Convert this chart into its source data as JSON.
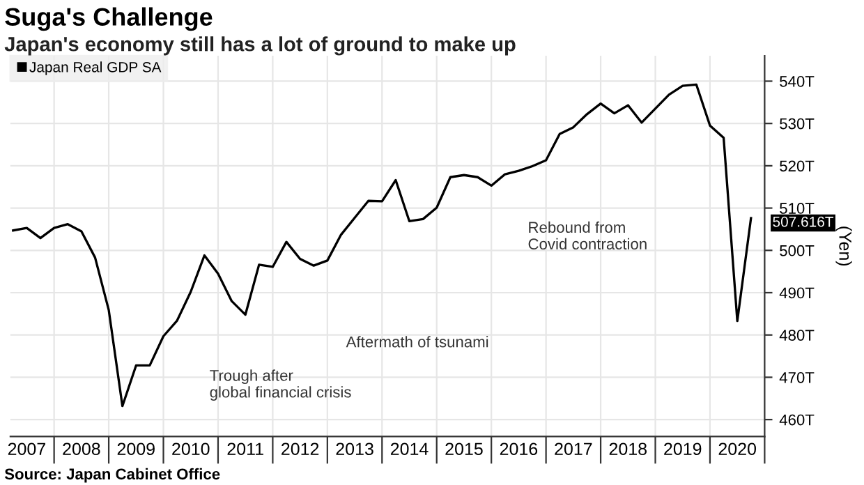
{
  "chart_data": {
    "type": "line",
    "title": "Suga's Challenge",
    "subtitle": "Japan's economy still has a lot of ground to make up",
    "ylabel": "(Yen)",
    "x": [
      2007.25,
      2007.5,
      2007.75,
      2008.0,
      2008.25,
      2008.5,
      2008.75,
      2009.0,
      2009.25,
      2009.5,
      2009.75,
      2010.0,
      2010.25,
      2010.5,
      2010.75,
      2011.0,
      2011.25,
      2011.5,
      2011.75,
      2012.0,
      2012.25,
      2012.5,
      2012.75,
      2013.0,
      2013.25,
      2013.5,
      2013.75,
      2014.0,
      2014.25,
      2014.5,
      2014.75,
      2015.0,
      2015.25,
      2015.5,
      2015.75,
      2016.0,
      2016.25,
      2016.5,
      2016.75,
      2017.0,
      2017.25,
      2017.5,
      2017.75,
      2018.0,
      2018.25,
      2018.5,
      2018.75,
      2019.0,
      2019.25,
      2019.5,
      2019.75,
      2020.0,
      2020.25,
      2020.5,
      2020.75
    ],
    "series": [
      {
        "name": "Japan Real GDP SA",
        "color": "#000000",
        "values": [
          504.7,
          505.3,
          502.9,
          505.3,
          506.2,
          504.5,
          498.3,
          485.9,
          463.2,
          472.8,
          472.8,
          479.7,
          483.4,
          490.2,
          498.8,
          494.5,
          488.0,
          484.8,
          496.6,
          496.1,
          502.0,
          498.0,
          496.4,
          497.6,
          503.7,
          507.7,
          511.7,
          511.6,
          516.6,
          506.9,
          507.4,
          510.1,
          517.3,
          517.8,
          517.3,
          515.3,
          518.0,
          518.8,
          519.9,
          521.3,
          527.5,
          529.1,
          532.2,
          534.7,
          532.4,
          534.3,
          530.2,
          533.5,
          536.8,
          538.9,
          539.2,
          529.5,
          526.6,
          483.3,
          507.616
        ],
        "value_labels": [
          null,
          null,
          null,
          null,
          null,
          null,
          null,
          null,
          null,
          null,
          null,
          null,
          null,
          null,
          null,
          null,
          null,
          null,
          null,
          null,
          null,
          null,
          null,
          null,
          null,
          null,
          null,
          null,
          null,
          null,
          null,
          null,
          null,
          null,
          null,
          null,
          null,
          null,
          null,
          null,
          null,
          null,
          null,
          null,
          null,
          null,
          null,
          null,
          null,
          null,
          null,
          null,
          null,
          null,
          "507.616T"
        ]
      }
    ],
    "xlim": [
      2007.2,
      2021.0
    ],
    "xticks": [
      {
        "value": 2007.5,
        "label": "2007"
      },
      {
        "value": 2008.0,
        "label": null
      },
      {
        "value": 2008.5,
        "label": "2008"
      },
      {
        "value": 2009.0,
        "label": null
      },
      {
        "value": 2009.5,
        "label": "2009"
      },
      {
        "value": 2010.0,
        "label": null
      },
      {
        "value": 2010.5,
        "label": "2010"
      },
      {
        "value": 2011.0,
        "label": null
      },
      {
        "value": 2011.5,
        "label": "2011"
      },
      {
        "value": 2012.0,
        "label": null
      },
      {
        "value": 2012.5,
        "label": "2012"
      },
      {
        "value": 2013.0,
        "label": null
      },
      {
        "value": 2013.5,
        "label": "2013"
      },
      {
        "value": 2014.0,
        "label": null
      },
      {
        "value": 2014.5,
        "label": "2014"
      },
      {
        "value": 2015.0,
        "label": null
      },
      {
        "value": 2015.5,
        "label": "2015"
      },
      {
        "value": 2016.0,
        "label": null
      },
      {
        "value": 2016.5,
        "label": "2016"
      },
      {
        "value": 2017.0,
        "label": null
      },
      {
        "value": 2017.5,
        "label": "2017"
      },
      {
        "value": 2018.0,
        "label": null
      },
      {
        "value": 2018.5,
        "label": "2018"
      },
      {
        "value": 2019.0,
        "label": null
      },
      {
        "value": 2019.5,
        "label": "2019"
      },
      {
        "value": 2020.0,
        "label": null
      },
      {
        "value": 2020.5,
        "label": "2020"
      },
      {
        "value": 2021.0,
        "label": null
      }
    ],
    "ylim": [
      456,
      546
    ],
    "yticks": [
      {
        "value": 460,
        "label": "460T"
      },
      {
        "value": 470,
        "label": "470T"
      },
      {
        "value": 480,
        "label": "480T"
      },
      {
        "value": 490,
        "label": "490T"
      },
      {
        "value": 500,
        "label": "500T"
      },
      {
        "value": 510,
        "label": "510T"
      },
      {
        "value": 520,
        "label": "520T"
      },
      {
        "value": 530,
        "label": "530T"
      },
      {
        "value": 540,
        "label": "540T"
      }
    ],
    "grid": true,
    "legend": "top left",
    "marker": "none",
    "line_style": "solid",
    "annotations": [
      "Trough after\nglobal financial crisis",
      "Aftermath of tsunami",
      "Rebound from\nCovid contraction",
      "Source: Japan Cabinet Office"
    ]
  }
}
